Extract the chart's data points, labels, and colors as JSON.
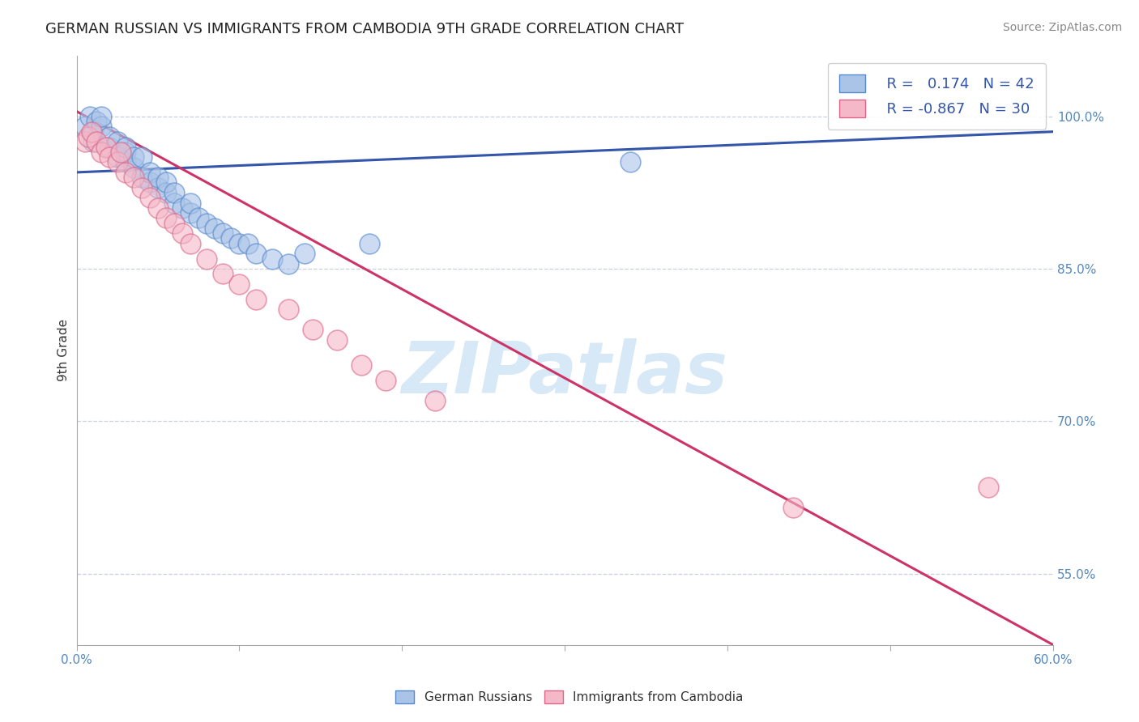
{
  "title": "GERMAN RUSSIAN VS IMMIGRANTS FROM CAMBODIA 9TH GRADE CORRELATION CHART",
  "source": "Source: ZipAtlas.com",
  "ylabel": "9th Grade",
  "xlim": [
    0.0,
    0.6
  ],
  "ylim": [
    0.48,
    1.06
  ],
  "xticks": [
    0.0,
    0.1,
    0.2,
    0.3,
    0.4,
    0.5,
    0.6
  ],
  "xticklabels": [
    "0.0%",
    "",
    "",
    "",
    "",
    "",
    "60.0%"
  ],
  "yticks": [
    0.55,
    0.7,
    0.85,
    1.0
  ],
  "yticklabels": [
    "55.0%",
    "70.0%",
    "85.0%",
    "100.0%"
  ],
  "grid_color": "#c8cfe0",
  "background_color": "#ffffff",
  "watermark_text": "ZIPatlas",
  "watermark_color": "#d0e4f5",
  "legend_R_blue": "R =   0.174",
  "legend_N_blue": "N = 42",
  "legend_R_pink": "R = -0.867",
  "legend_N_pink": "N = 30",
  "blue_fill": "#aac4e8",
  "blue_edge": "#5588cc",
  "pink_fill": "#f5b8c8",
  "pink_edge": "#dd6688",
  "blue_line_color": "#3355aa",
  "pink_line_color": "#cc3366",
  "tick_color": "#5588bb",
  "title_fontsize": 13,
  "source_fontsize": 10,
  "axis_label_fontsize": 11,
  "tick_fontsize": 11,
  "legend_fontsize": 13,
  "blue_scatter_x": [
    0.005,
    0.008,
    0.01,
    0.01,
    0.012,
    0.015,
    0.015,
    0.02,
    0.02,
    0.025,
    0.025,
    0.03,
    0.03,
    0.03,
    0.035,
    0.035,
    0.04,
    0.04,
    0.045,
    0.045,
    0.05,
    0.05,
    0.055,
    0.055,
    0.06,
    0.06,
    0.065,
    0.07,
    0.07,
    0.075,
    0.08,
    0.085,
    0.09,
    0.095,
    0.1,
    0.105,
    0.11,
    0.12,
    0.13,
    0.14,
    0.18,
    0.34
  ],
  "blue_scatter_y": [
    0.99,
    1.0,
    0.985,
    0.975,
    0.995,
    0.99,
    1.0,
    0.97,
    0.98,
    0.96,
    0.975,
    0.955,
    0.965,
    0.97,
    0.95,
    0.96,
    0.94,
    0.96,
    0.935,
    0.945,
    0.93,
    0.94,
    0.925,
    0.935,
    0.915,
    0.925,
    0.91,
    0.905,
    0.915,
    0.9,
    0.895,
    0.89,
    0.885,
    0.88,
    0.875,
    0.875,
    0.865,
    0.86,
    0.855,
    0.865,
    0.875,
    0.955
  ],
  "pink_scatter_x": [
    0.005,
    0.007,
    0.009,
    0.012,
    0.015,
    0.018,
    0.02,
    0.025,
    0.027,
    0.03,
    0.035,
    0.04,
    0.045,
    0.05,
    0.055,
    0.06,
    0.065,
    0.07,
    0.08,
    0.09,
    0.1,
    0.11,
    0.13,
    0.145,
    0.16,
    0.175,
    0.19,
    0.22,
    0.44,
    0.56
  ],
  "pink_scatter_y": [
    0.975,
    0.98,
    0.985,
    0.975,
    0.965,
    0.97,
    0.96,
    0.955,
    0.965,
    0.945,
    0.94,
    0.93,
    0.92,
    0.91,
    0.9,
    0.895,
    0.885,
    0.875,
    0.86,
    0.845,
    0.835,
    0.82,
    0.81,
    0.79,
    0.78,
    0.755,
    0.74,
    0.72,
    0.615,
    0.635
  ],
  "blue_line_x": [
    0.0,
    0.6
  ],
  "blue_line_y": [
    0.945,
    0.985
  ],
  "pink_line_x": [
    0.0,
    0.6
  ],
  "pink_line_y": [
    1.005,
    0.48
  ]
}
